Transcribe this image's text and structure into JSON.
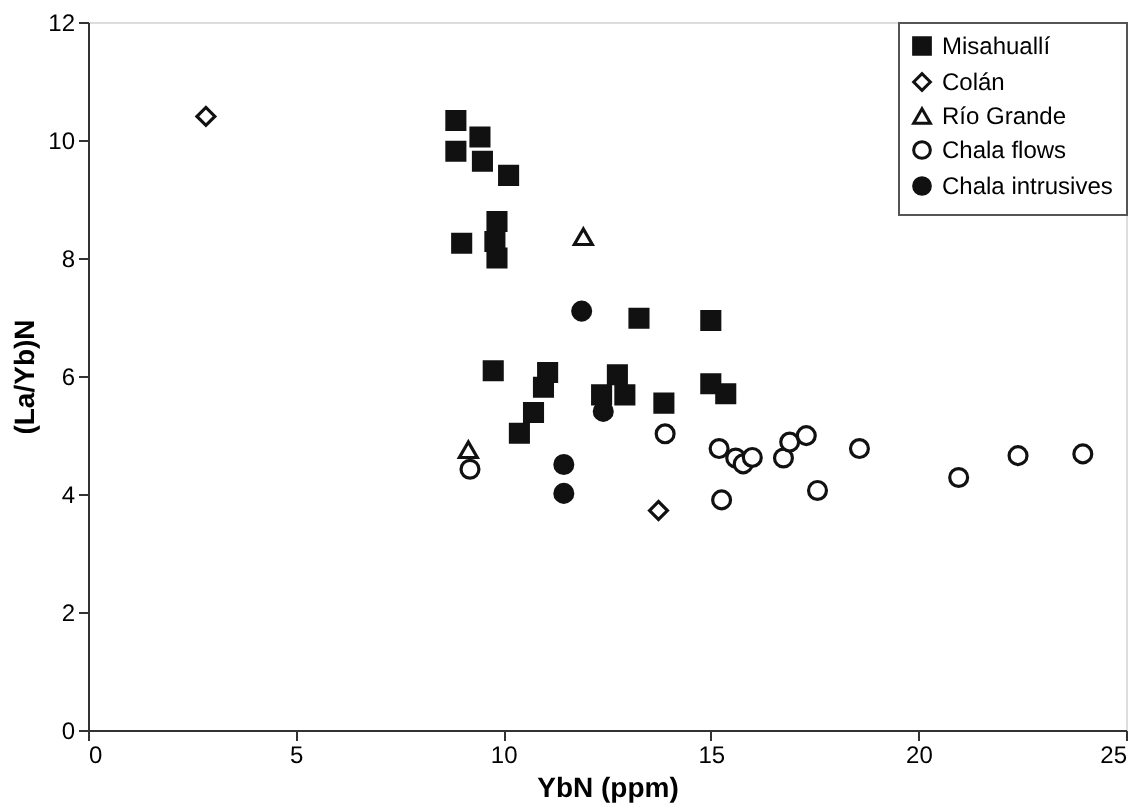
{
  "chart_data": {
    "type": "scatter",
    "xlabel": "YbN (ppm)",
    "ylabel": "(La/Yb)N",
    "xlim": [
      0,
      25
    ],
    "xticks": [
      0,
      5,
      10,
      15,
      20,
      25
    ],
    "ylim": [
      0,
      12
    ],
    "yticks": [
      0,
      2,
      4,
      6,
      8,
      10,
      12
    ],
    "grid": false,
    "legend": "top right",
    "series": [
      {
        "name": "Misahuallí",
        "color": "#111111",
        "marker": "square",
        "x": [
          8.86,
          8.86,
          9.44,
          9.5,
          10.13,
          9.0,
          9.85,
          9.8,
          9.85,
          9.76,
          13.27,
          15.0,
          11.07,
          10.97,
          10.73,
          10.39,
          12.75,
          12.37,
          12.93,
          13.87,
          15.0,
          15.36
        ],
        "values": [
          10.33,
          9.81,
          10.05,
          9.64,
          9.4,
          8.25,
          8.62,
          8.28,
          8.0,
          6.09,
          6.98,
          6.94,
          6.06,
          5.81,
          5.38,
          5.03,
          6.02,
          5.68,
          5.68,
          5.54,
          5.87,
          5.7
        ]
      },
      {
        "name": "Colán",
        "color": "#ffffff",
        "marker": "diamond",
        "x": [
          2.84,
          13.74
        ],
        "values": [
          10.4,
          3.72
        ]
      },
      {
        "name": "Río Grande",
        "color": "#ffffff",
        "marker": "triangle",
        "x": [
          11.93,
          9.16
        ],
        "values": [
          8.36,
          4.75
        ]
      },
      {
        "name": "Chala flows",
        "color": "#ffffff",
        "marker": "circle",
        "x": [
          9.2,
          13.9,
          15.2,
          15.26,
          15.6,
          15.78,
          16.0,
          16.75,
          16.9,
          17.3,
          17.57,
          18.58,
          20.97,
          22.4,
          23.96
        ],
        "values": [
          4.42,
          5.02,
          4.77,
          3.9,
          4.61,
          4.51,
          4.62,
          4.61,
          4.88,
          4.99,
          4.06,
          4.77,
          4.28,
          4.65,
          4.68
        ]
      },
      {
        "name": "Chala intrusives",
        "color": "#111111",
        "marker": "circle",
        "x": [
          11.89,
          11.46,
          11.46,
          12.41
        ],
        "values": [
          7.1,
          4.5,
          4.01,
          5.4
        ]
      }
    ]
  }
}
